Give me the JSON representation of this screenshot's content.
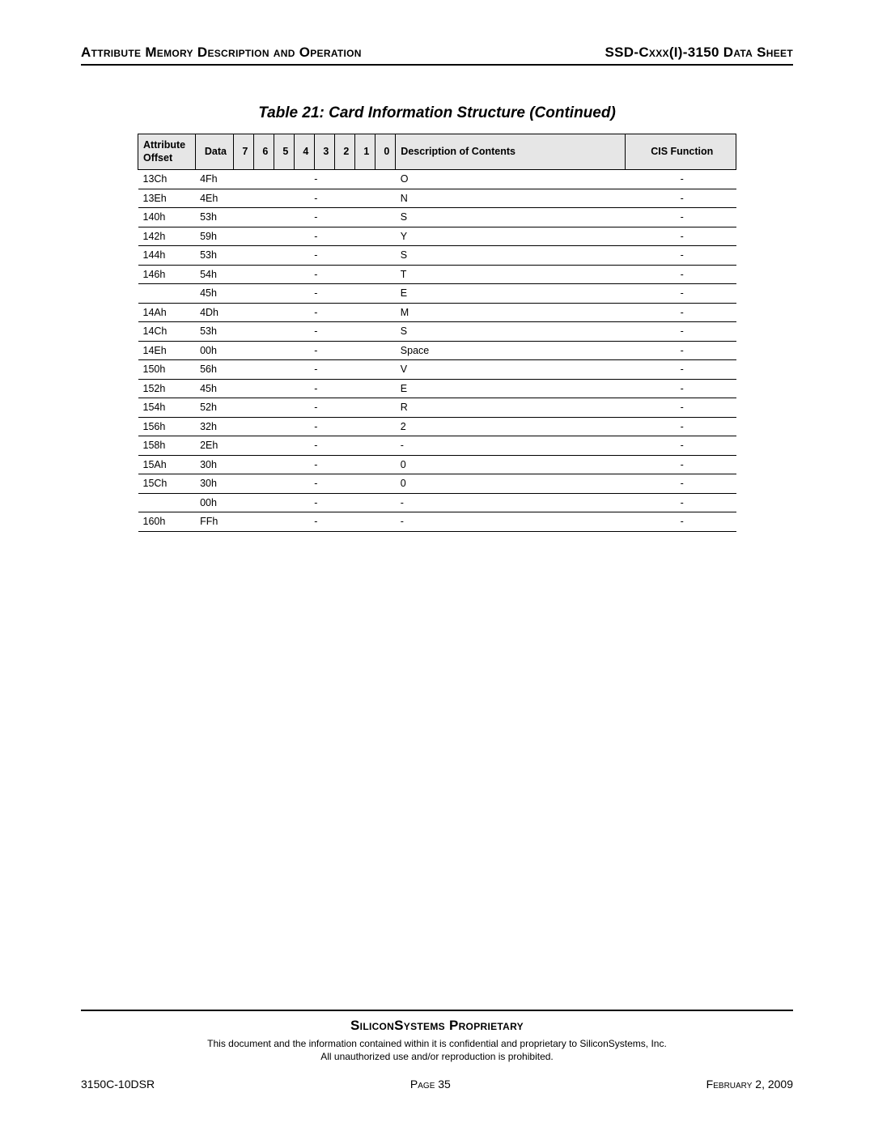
{
  "header": {
    "left": "Attribute Memory Description and Operation",
    "right": "SSD-Cxxx(I)-3150 Data Sheet"
  },
  "table": {
    "caption": "Table 21:  Card Information Structure (Continued)",
    "columns": {
      "offset": "Attribute Offset",
      "data": "Data",
      "b7": "7",
      "b6": "6",
      "b5": "5",
      "b4": "4",
      "b3": "3",
      "b2": "2",
      "b1": "1",
      "b0": "0",
      "desc": "Description of Contents",
      "func": "CIS Function"
    },
    "rows": [
      {
        "offset": "13Ch",
        "data": "4Fh",
        "bits": "-",
        "desc": "O",
        "func": "-"
      },
      {
        "offset": "13Eh",
        "data": "4Eh",
        "bits": "-",
        "desc": "N",
        "func": "-"
      },
      {
        "offset": "140h",
        "data": "53h",
        "bits": "-",
        "desc": "S",
        "func": "-"
      },
      {
        "offset": "142h",
        "data": "59h",
        "bits": "-",
        "desc": "Y",
        "func": "-"
      },
      {
        "offset": "144h",
        "data": "53h",
        "bits": "-",
        "desc": "S",
        "func": "-"
      },
      {
        "offset": "146h",
        "data": "54h",
        "bits": "-",
        "desc": "T",
        "func": "-"
      },
      {
        "offset": "",
        "data": "45h",
        "bits": "-",
        "desc": "E",
        "func": "-"
      },
      {
        "offset": "14Ah",
        "data": "4Dh",
        "bits": "-",
        "desc": "M",
        "func": "-"
      },
      {
        "offset": "14Ch",
        "data": "53h",
        "bits": "-",
        "desc": "S",
        "func": "-"
      },
      {
        "offset": "14Eh",
        "data": "00h",
        "bits": "-",
        "desc": "Space",
        "func": "-"
      },
      {
        "offset": "150h",
        "data": "56h",
        "bits": "-",
        "desc": "V",
        "func": "-"
      },
      {
        "offset": "152h",
        "data": "45h",
        "bits": "-",
        "desc": "E",
        "func": "-"
      },
      {
        "offset": "154h",
        "data": "52h",
        "bits": "-",
        "desc": "R",
        "func": "-"
      },
      {
        "offset": "156h",
        "data": "32h",
        "bits": "-",
        "desc": "2",
        "func": "-"
      },
      {
        "offset": "158h",
        "data": "2Eh",
        "bits": "-",
        "desc": "-",
        "func": "-"
      },
      {
        "offset": "15Ah",
        "data": "30h",
        "bits": "-",
        "desc": "0",
        "func": "-"
      },
      {
        "offset": "15Ch",
        "data": "30h",
        "bits": "-",
        "desc": "0",
        "func": "-"
      },
      {
        "offset": "",
        "data": "00h",
        "bits": "-",
        "desc": "-",
        "func": "-"
      },
      {
        "offset": "160h",
        "data": "FFh",
        "bits": "-",
        "desc": "-",
        "func": "-"
      }
    ]
  },
  "footer": {
    "title": "SiliconSystems Proprietary",
    "line1": "This document and the information contained within it is confidential and proprietary to SiliconSystems, Inc.",
    "line2": "All unauthorized use and/or reproduction is prohibited.",
    "doc_id": "3150C-10DSR",
    "page_label": "Page 35",
    "date": "February 2, 2009"
  }
}
